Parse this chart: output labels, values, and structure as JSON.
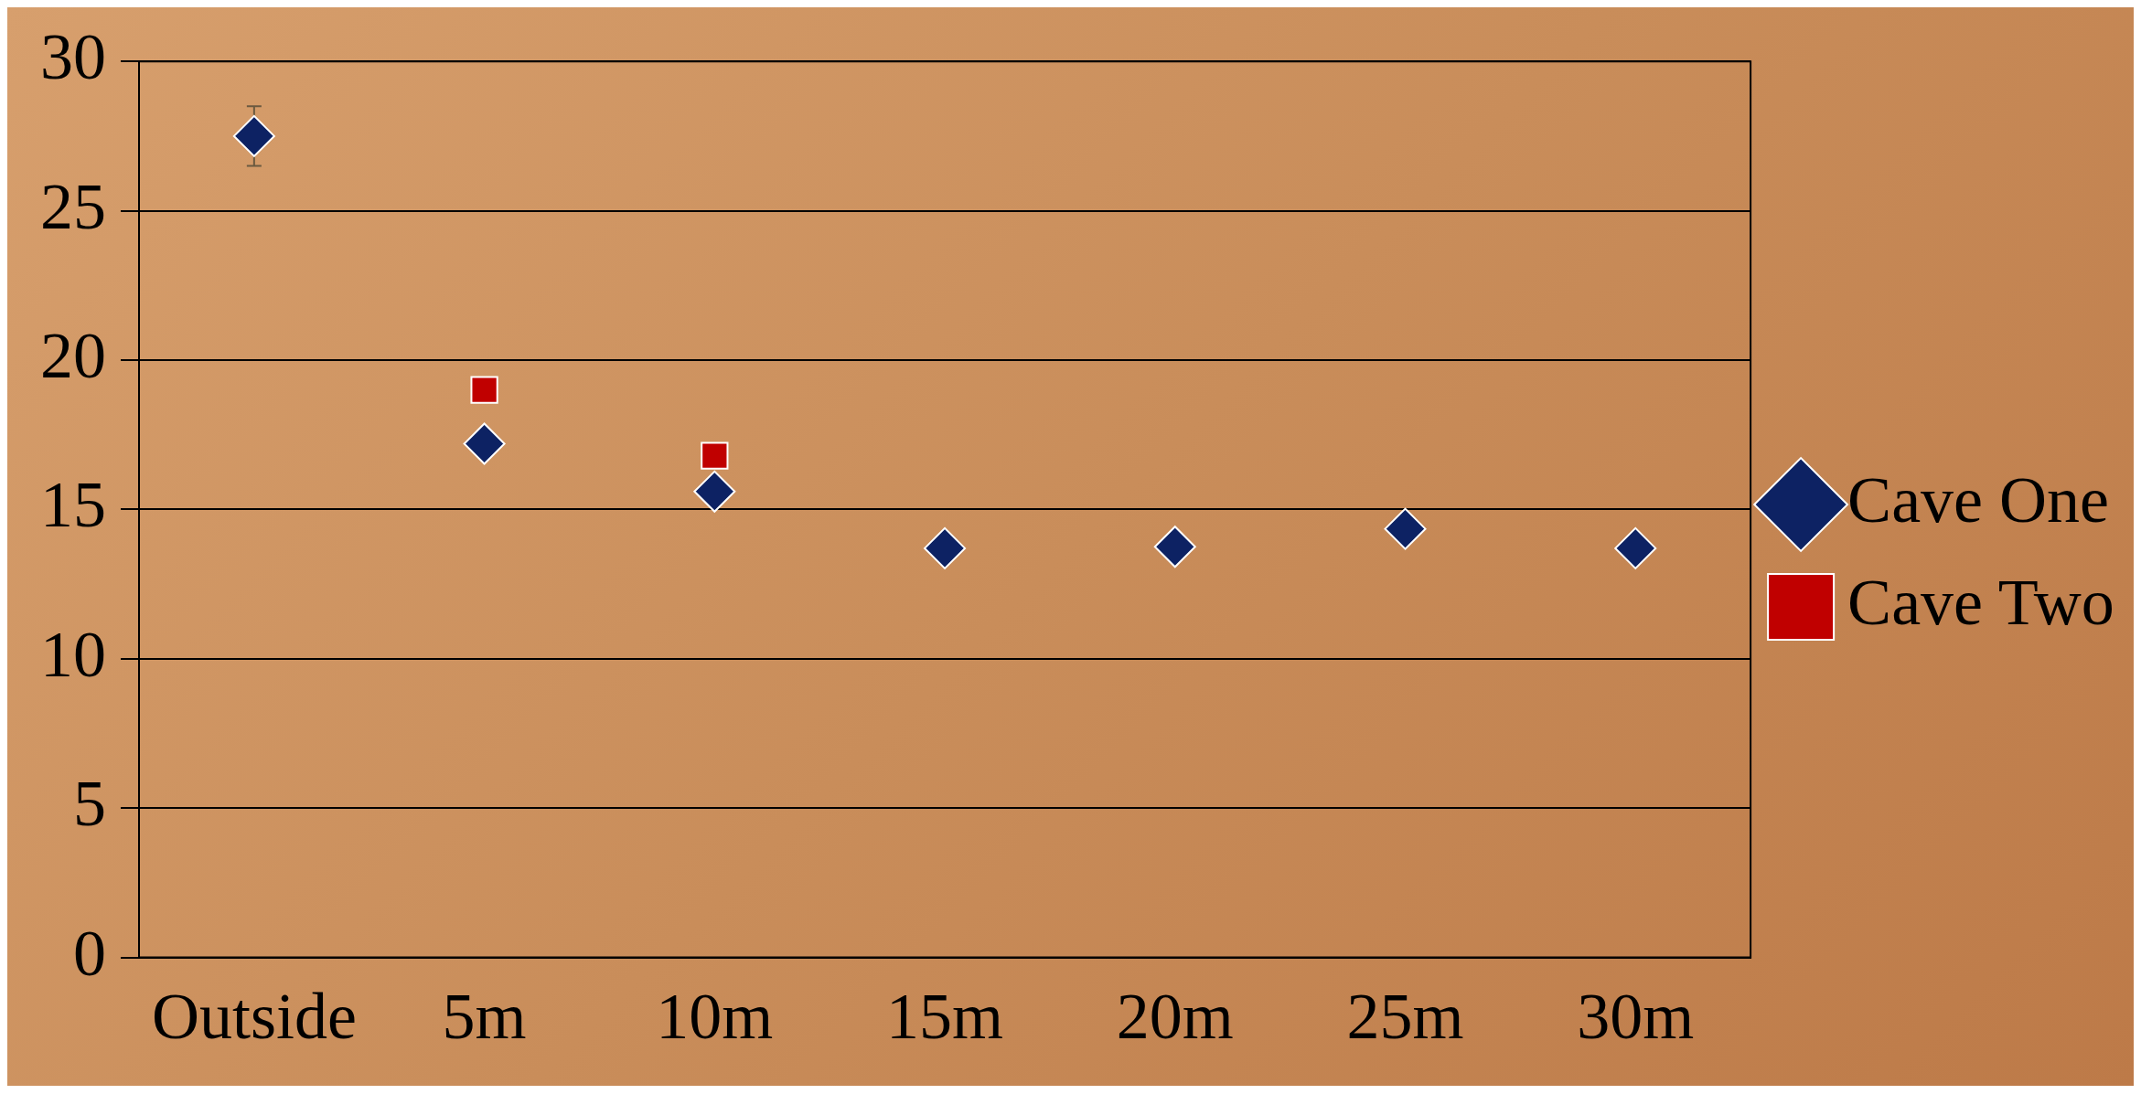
{
  "chart_data": {
    "type": "scatter",
    "categories": [
      "Outside",
      "5m",
      "10m",
      "15m",
      "20m",
      "25m",
      "30m"
    ],
    "series": [
      {
        "name": "Cave One",
        "color": "#0d2263",
        "marker": "diamond",
        "values": [
          27.5,
          17.2,
          15.6,
          13.7,
          13.75,
          14.35,
          13.7
        ],
        "errors": [
          1,
          null,
          null,
          null,
          null,
          null,
          null
        ]
      },
      {
        "name": "Cave Two",
        "color": "#c00000",
        "marker": "square",
        "values": [
          null,
          19.0,
          16.8,
          null,
          null,
          null,
          null
        ]
      }
    ],
    "ylim": [
      0,
      30
    ],
    "yticks": [
      0,
      5,
      10,
      15,
      20,
      25,
      30
    ],
    "grid": "y",
    "legend": "right"
  }
}
